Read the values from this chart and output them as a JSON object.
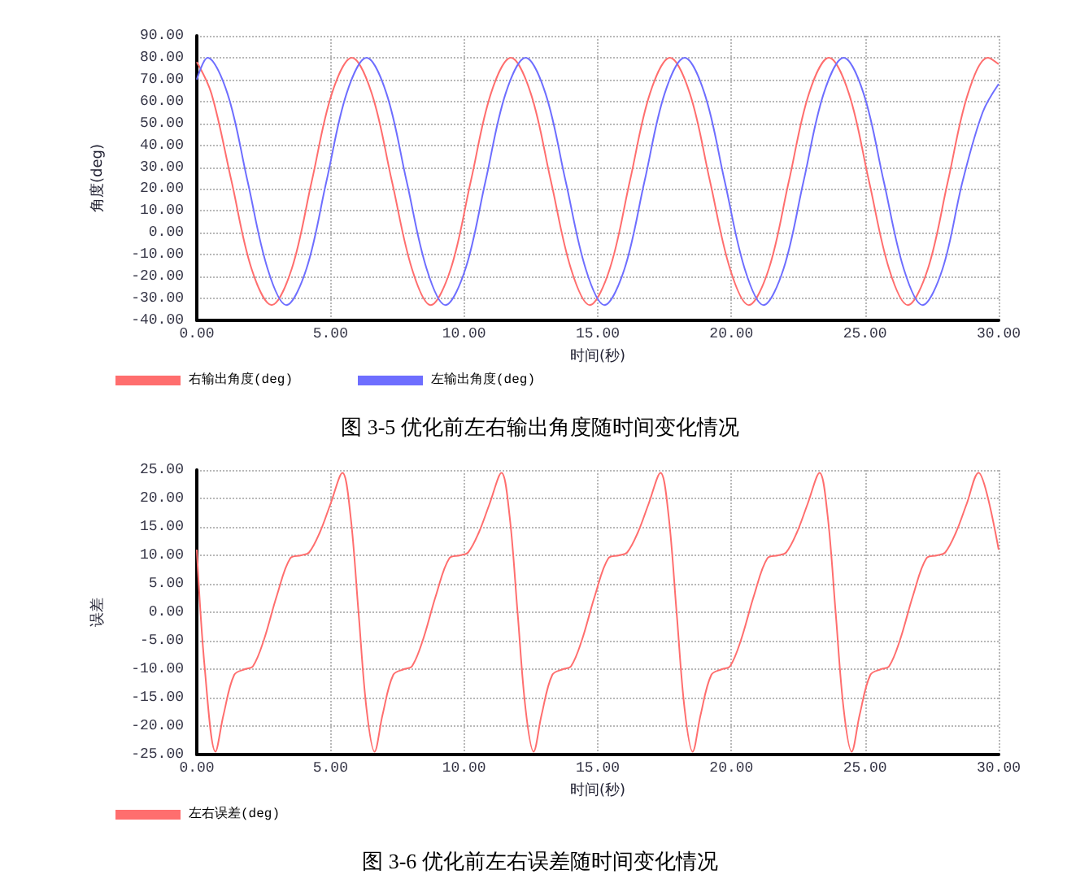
{
  "chart_data": [
    {
      "type": "line",
      "xlabel": "时间(秒)",
      "ylabel": "角度(deg)",
      "xlim": [
        0,
        30
      ],
      "ylim": [
        -40,
        90
      ],
      "xticks": [
        {
          "value": 0,
          "label": "0.00"
        },
        {
          "value": 5,
          "label": "5.00"
        },
        {
          "value": 10,
          "label": "10.00"
        },
        {
          "value": 15,
          "label": "15.00"
        },
        {
          "value": 20,
          "label": "20.00"
        },
        {
          "value": 25,
          "label": "25.00"
        },
        {
          "value": 30,
          "label": "30.00"
        }
      ],
      "yticks": [
        {
          "value": -40,
          "label": "-40.00"
        },
        {
          "value": -30,
          "label": "-30.00"
        },
        {
          "value": -20,
          "label": "-20.00"
        },
        {
          "value": -10,
          "label": "-10.00"
        },
        {
          "value": 0,
          "label": "0.00"
        },
        {
          "value": 10,
          "label": "10.00"
        },
        {
          "value": 20,
          "label": "20.00"
        },
        {
          "value": 30,
          "label": "30.00"
        },
        {
          "value": 40,
          "label": "40.00"
        },
        {
          "value": 50,
          "label": "50.00"
        },
        {
          "value": 60,
          "label": "60.00"
        },
        {
          "value": 70,
          "label": "70.00"
        },
        {
          "value": 80,
          "label": "80.00"
        },
        {
          "value": 90,
          "label": "90.00"
        }
      ],
      "grid": true,
      "legend": "bottom left",
      "marker": "none",
      "line_style": "solid",
      "annotations": [
        "图 3-5 优化前左右输出角度随时间变化情况"
      ],
      "series": [
        {
          "name": "右输出角度(deg)",
          "color": "#ff6e6e",
          "x": [
            0,
            0.55,
            1.3,
            2.05,
            2.8,
            3.55,
            4.3,
            5.05,
            5.8,
            6.55,
            7.3,
            8.05,
            8.75,
            9.5,
            10.25,
            11.0,
            11.75,
            12.5,
            13.25,
            14.0,
            14.7,
            15.45,
            16.2,
            16.95,
            17.7,
            18.45,
            19.2,
            19.95,
            20.65,
            21.4,
            22.15,
            22.9,
            23.65,
            24.4,
            25.15,
            25.9,
            26.6,
            27.35,
            28.1,
            28.85,
            29.6,
            30
          ],
          "values": [
            78,
            63.5,
            23.5,
            -16.5,
            -33,
            -16.5,
            23.5,
            63.5,
            80,
            63.5,
            23.5,
            -16.5,
            -33,
            -16.5,
            23.5,
            63.5,
            80,
            63.5,
            23.5,
            -16.5,
            -33,
            -16.5,
            23.5,
            63.5,
            80,
            63.5,
            23.5,
            -16.5,
            -33,
            -16.5,
            23.5,
            63.5,
            80,
            63.5,
            23.5,
            -16.5,
            -33,
            -16.5,
            23.5,
            63.5,
            80,
            77
          ]
        },
        {
          "name": "左输出角度(deg)",
          "color": "#6e6eff",
          "x": [
            0,
            0.4,
            1.15,
            1.9,
            2.65,
            3.35,
            4.1,
            4.85,
            5.6,
            6.35,
            7.1,
            7.85,
            8.6,
            9.3,
            10.05,
            10.8,
            11.55,
            12.3,
            13.05,
            13.8,
            14.55,
            15.25,
            16.0,
            16.75,
            17.5,
            18.25,
            19.0,
            19.75,
            20.5,
            21.2,
            21.95,
            22.7,
            23.45,
            24.2,
            24.95,
            25.7,
            26.45,
            27.15,
            27.9,
            28.65,
            29.4,
            30
          ],
          "values": [
            70,
            80,
            63.5,
            23.5,
            -16.5,
            -33,
            -16.5,
            23.5,
            63.5,
            80,
            63.5,
            23.5,
            -16.5,
            -33,
            -16.5,
            23.5,
            63.5,
            80,
            63.5,
            23.5,
            -16.5,
            -33,
            -16.5,
            23.5,
            63.5,
            80,
            63.5,
            23.5,
            -16.5,
            -33,
            -16.5,
            23.5,
            63.5,
            80,
            63.5,
            23.5,
            -16.5,
            -33,
            -16.5,
            23.5,
            55,
            68
          ]
        }
      ]
    },
    {
      "type": "line",
      "xlabel": "时间(秒)",
      "ylabel": "误差",
      "xlim": [
        0,
        30
      ],
      "ylim": [
        -25,
        25
      ],
      "xticks": [
        {
          "value": 0,
          "label": "0.00"
        },
        {
          "value": 5,
          "label": "5.00"
        },
        {
          "value": 10,
          "label": "10.00"
        },
        {
          "value": 15,
          "label": "15.00"
        },
        {
          "value": 20,
          "label": "20.00"
        },
        {
          "value": 25,
          "label": "25.00"
        },
        {
          "value": 30,
          "label": "30.00"
        }
      ],
      "yticks": [
        {
          "value": -25,
          "label": "-25.00"
        },
        {
          "value": -20,
          "label": "-20.00"
        },
        {
          "value": -15,
          "label": "-15.00"
        },
        {
          "value": -10,
          "label": "-10.00"
        },
        {
          "value": -5,
          "label": "-5.00"
        },
        {
          "value": 0,
          "label": "0.00"
        },
        {
          "value": 5,
          "label": "5.00"
        },
        {
          "value": 10,
          "label": "10.00"
        },
        {
          "value": 15,
          "label": "15.00"
        },
        {
          "value": 20,
          "label": "20.00"
        },
        {
          "value": 25,
          "label": "25.00"
        }
      ],
      "grid": true,
      "legend": "bottom left",
      "marker": "none",
      "line_style": "solid",
      "annotations": [
        "图 3-6 优化前左右误差随时间变化情况"
      ],
      "series": [
        {
          "name": "左右误差(deg)",
          "color": "#ff6e6e",
          "x": [
            0,
            0.3,
            0.7,
            1.0,
            1.4,
            1.8,
            2.1,
            2.5,
            3.0,
            3.5,
            3.9,
            4.2,
            4.6,
            5.0,
            5.45,
            5.75,
            6.05,
            6.35,
            6.65,
            6.95,
            7.35,
            7.75,
            8.05,
            8.45,
            8.95,
            9.45,
            9.85,
            10.15,
            10.55,
            10.95,
            11.4,
            11.7,
            12.0,
            12.3,
            12.6,
            12.9,
            13.3,
            13.7,
            14.0,
            14.4,
            14.9,
            15.4,
            15.8,
            16.1,
            16.5,
            16.9,
            17.35,
            17.65,
            17.95,
            18.25,
            18.55,
            18.85,
            19.25,
            19.65,
            19.95,
            20.35,
            20.85,
            21.35,
            21.75,
            22.05,
            22.45,
            22.85,
            23.3,
            23.6,
            23.9,
            24.2,
            24.5,
            24.8,
            25.2,
            25.6,
            25.9,
            26.3,
            26.8,
            27.3,
            27.7,
            28.0,
            28.4,
            28.8,
            29.25,
            29.55,
            30
          ],
          "values": [
            11,
            -10,
            -24.5,
            -18,
            -11,
            -10,
            -9.5,
            -5,
            3,
            9.5,
            10,
            10.5,
            14,
            19,
            24.5,
            17,
            0,
            -17,
            -24.5,
            -18,
            -11,
            -10,
            -9.5,
            -5,
            3,
            9.5,
            10,
            10.5,
            14,
            19,
            24.5,
            17,
            0,
            -17,
            -24.5,
            -18,
            -11,
            -10,
            -9.5,
            -5,
            3,
            9.5,
            10,
            10.5,
            14,
            19,
            24.5,
            17,
            0,
            -17,
            -24.5,
            -18,
            -11,
            -10,
            -9.5,
            -5,
            3,
            9.5,
            10,
            10.5,
            14,
            19,
            24.5,
            17,
            0,
            -17,
            -24.5,
            -18,
            -11,
            -10,
            -9.5,
            -5,
            3,
            9.5,
            10,
            10.5,
            14,
            19,
            24.5,
            21,
            11
          ]
        }
      ]
    }
  ]
}
